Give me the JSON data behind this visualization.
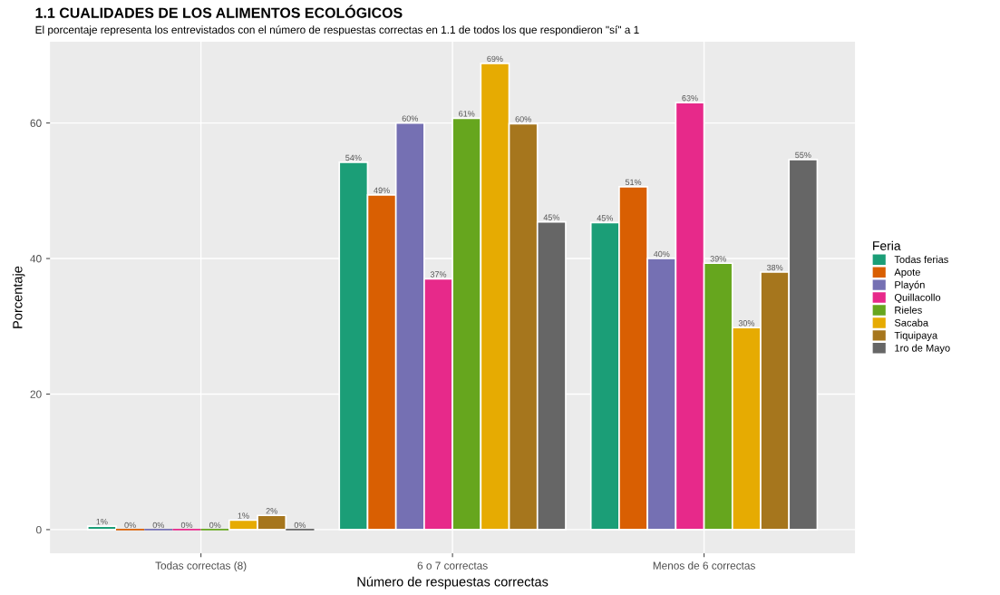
{
  "chart_data": {
    "type": "bar",
    "title": "1.1 CUALIDADES DE LOS ALIMENTOS ECOLÓGICOS",
    "subtitle": "El porcentaje representa los entrevistados con el número de respuestas correctas en 1.1 de todos los que respondieron \"sí\" a 1",
    "xlabel": "Número de respuestas correctas",
    "ylabel": "Porcentaje",
    "legend_title": "Feria",
    "categories": [
      "Todas correctas (8)",
      "6 o 7 correctas",
      "Menos de 6 correctas"
    ],
    "series": [
      {
        "name": "Todas ferias",
        "color": "#1b9e77",
        "values": [
          0.5,
          54.2,
          45.3
        ],
        "value_labels": [
          "1%",
          "54%",
          "45%"
        ]
      },
      {
        "name": "Apote",
        "color": "#d95f02",
        "values": [
          0,
          49.4,
          50.6
        ],
        "value_labels": [
          "0%",
          "49%",
          "51%"
        ]
      },
      {
        "name": "Playón",
        "color": "#7570b3",
        "values": [
          0,
          60,
          40
        ],
        "value_labels": [
          "0%",
          "60%",
          "40%"
        ]
      },
      {
        "name": "Quillacollo",
        "color": "#e7298a",
        "values": [
          0,
          37,
          63
        ],
        "value_labels": [
          "0%",
          "37%",
          "63%"
        ]
      },
      {
        "name": "Rieles",
        "color": "#66a61e",
        "values": [
          0,
          60.7,
          39.3
        ],
        "value_labels": [
          "0%",
          "61%",
          "39%"
        ]
      },
      {
        "name": "Sacaba",
        "color": "#e6ab02",
        "values": [
          1.4,
          68.8,
          29.8
        ],
        "value_labels": [
          "1%",
          "69%",
          "30%"
        ]
      },
      {
        "name": "Tiquipaya",
        "color": "#a6761d",
        "values": [
          2.1,
          59.9,
          38
        ],
        "value_labels": [
          "2%",
          "60%",
          "38%"
        ]
      },
      {
        "name": "1ro de Mayo",
        "color": "#666666",
        "values": [
          0,
          45.4,
          54.6
        ],
        "value_labels": [
          "0%",
          "45%",
          "55%"
        ]
      }
    ],
    "ylim": [
      -3.5,
      72
    ],
    "yticks": [
      0,
      20,
      40,
      60
    ],
    "grid": true,
    "legend": "right"
  }
}
